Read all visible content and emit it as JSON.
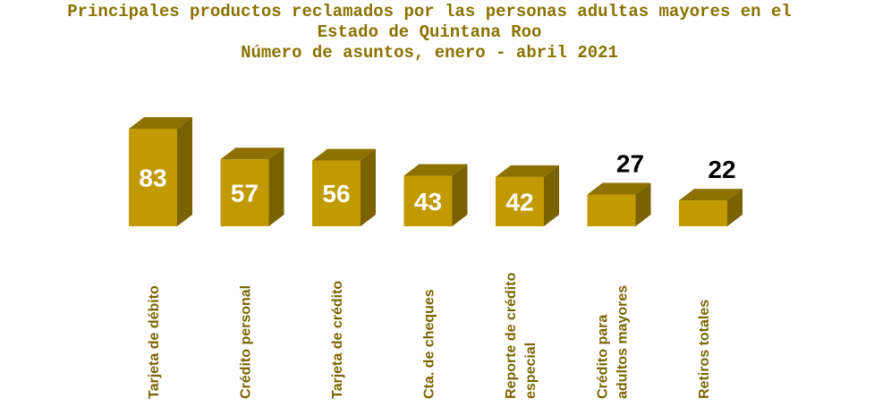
{
  "chart_data": {
    "type": "bar",
    "title": [
      "Principales productos reclamados por las personas adultas mayores en el",
      "Estado de Quintana Roo",
      "Número de asuntos, enero - abril 2021"
    ],
    "categories": [
      [
        "Tarjeta de débito"
      ],
      [
        "Crédito personal"
      ],
      [
        "Tarjeta de crédito"
      ],
      [
        "Cta. de cheques"
      ],
      [
        "Reporte de crédito",
        "especial"
      ],
      [
        "Crédito para",
        "adultos mayores"
      ],
      [
        "Retiros totales"
      ]
    ],
    "values": [
      83,
      57,
      56,
      43,
      42,
      27,
      22
    ],
    "xlabel": "",
    "ylabel": "",
    "ylim": [
      0,
      83
    ],
    "colors": {
      "front": "#c19a00",
      "top": "#8c7000",
      "side": "#7a6200",
      "title": "#8a7200",
      "label": "#7a6400"
    }
  }
}
